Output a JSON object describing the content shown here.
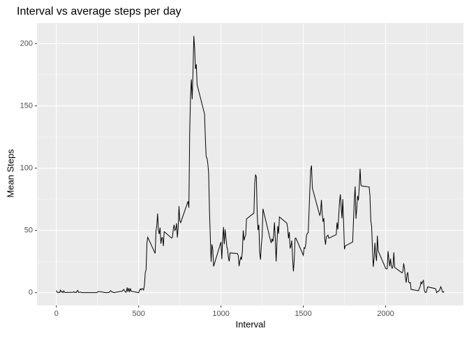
{
  "chart_data": {
    "type": "line",
    "title": "Interval vs average steps per day",
    "x_label": "Interval",
    "y_label": "Mean Steps",
    "color": "#000000",
    "x": [
      0,
      5,
      10,
      15,
      20,
      25,
      30,
      35,
      40,
      45,
      50,
      55,
      100,
      105,
      110,
      115,
      120,
      125,
      130,
      135,
      140,
      145,
      150,
      155,
      200,
      220,
      230,
      245,
      255,
      300,
      310,
      320,
      330,
      340,
      350,
      400,
      410,
      420,
      425,
      430,
      435,
      440,
      445,
      450,
      455,
      500,
      505,
      510,
      515,
      520,
      525,
      530,
      535,
      540,
      545,
      550,
      555,
      600,
      605,
      610,
      615,
      620,
      625,
      630,
      635,
      640,
      645,
      650,
      655,
      700,
      705,
      710,
      715,
      720,
      725,
      730,
      735,
      740,
      745,
      750,
      755,
      800,
      805,
      810,
      815,
      820,
      825,
      830,
      835,
      840,
      845,
      850,
      855,
      900,
      905,
      910,
      915,
      920,
      925,
      930,
      935,
      940,
      945,
      950,
      955,
      1000,
      1005,
      1010,
      1015,
      1020,
      1025,
      1030,
      1035,
      1040,
      1045,
      1050,
      1055,
      1100,
      1105,
      1110,
      1115,
      1120,
      1125,
      1130,
      1135,
      1140,
      1145,
      1150,
      1155,
      1200,
      1205,
      1210,
      1215,
      1220,
      1225,
      1230,
      1235,
      1240,
      1245,
      1250,
      1255,
      1300,
      1305,
      1310,
      1315,
      1320,
      1325,
      1330,
      1335,
      1340,
      1345,
      1350,
      1355,
      1400,
      1405,
      1410,
      1415,
      1420,
      1425,
      1430,
      1435,
      1440,
      1445,
      1450,
      1455,
      1500,
      1505,
      1510,
      1515,
      1520,
      1525,
      1530,
      1535,
      1540,
      1545,
      1550,
      1555,
      1600,
      1605,
      1610,
      1615,
      1620,
      1625,
      1630,
      1635,
      1640,
      1645,
      1650,
      1655,
      1700,
      1705,
      1710,
      1715,
      1720,
      1725,
      1730,
      1735,
      1740,
      1745,
      1750,
      1755,
      1800,
      1805,
      1810,
      1815,
      1820,
      1825,
      1830,
      1835,
      1840,
      1845,
      1850,
      1855,
      1900,
      1905,
      1910,
      1915,
      1920,
      1925,
      1930,
      1935,
      1940,
      1945,
      1950,
      1955,
      2000,
      2005,
      2010,
      2015,
      2020,
      2025,
      2030,
      2035,
      2040,
      2045,
      2050,
      2055,
      2100,
      2105,
      2110,
      2115,
      2120,
      2125,
      2130,
      2135,
      2140,
      2145,
      2150,
      2155,
      2200,
      2205,
      2210,
      2215,
      2220,
      2225,
      2230,
      2235,
      2240,
      2245,
      2250,
      2255,
      2300,
      2305,
      2310,
      2315,
      2320,
      2325,
      2330,
      2335,
      2340,
      2345,
      2350,
      2355
    ],
    "values": [
      1.7,
      0.3,
      0.1,
      0.2,
      0.1,
      2.1,
      0.5,
      0.9,
      0,
      1.5,
      0.3,
      0.1,
      0.3,
      0.7,
      0.2,
      0.3,
      0,
      1.1,
      1.8,
      0.2,
      0.2,
      0.4,
      0.3,
      0,
      0,
      0,
      0,
      0,
      0.9,
      0,
      0,
      0.2,
      1.6,
      0.5,
      0,
      1.2,
      2.6,
      0.3,
      0.4,
      4.1,
      0.7,
      3.5,
      0.8,
      3.1,
      1.1,
      0,
      1.6,
      3.0,
      2.2,
      3.3,
      3.0,
      2.1,
      6.1,
      16,
      18.3,
      39.5,
      44.5,
      31.5,
      49.3,
      53.8,
      63.5,
      50,
      47.1,
      52.2,
      39.3,
      44.0,
      44.2,
      37.4,
      49,
      43.8,
      44.4,
      50.5,
      54.5,
      49.9,
      50.9,
      55.7,
      44.3,
      52.3,
      69.5,
      57.8,
      56.2,
      73.4,
      68.2,
      129.4,
      157.5,
      171.2,
      155.4,
      177.3,
      206.2,
      195.9,
      179.6,
      183.4,
      167.0,
      143.5,
      124.0,
      109.1,
      108.1,
      103.7,
      95.9,
      66.2,
      45.2,
      24.8,
      38.8,
      35.0,
      21.1,
      40.6,
      27.0,
      42.4,
      52.7,
      38.9,
      50.8,
      44.3,
      37.4,
      34.7,
      28.3,
      25.1,
      31.9,
      31.4,
      29.7,
      21.3,
      25.5,
      28.4,
      26.5,
      33.4,
      50.0,
      42.0,
      44.6,
      46.0,
      59.2,
      63.9,
      87.7,
      94.8,
      92.8,
      63.4,
      50.2,
      54.5,
      32.4,
      26.5,
      37.7,
      45.1,
      67.3,
      42.3,
      39.9,
      43.3,
      41.0,
      46.2,
      56.4,
      42.8,
      25.1,
      40.0,
      53.5,
      47.3,
      60.8,
      55.8,
      52.0,
      43.6,
      48.7,
      35.5,
      37.5,
      41.8,
      27.5,
      17.1,
      26.1,
      43.6,
      43.8,
      30.0,
      36.1,
      35.5,
      38.8,
      46.0,
      47.8,
      48.1,
      65.3,
      82.9,
      98.7,
      102.1,
      84.0,
      62.1,
      64.1,
      74.5,
      63.2,
      56.9,
      59.8,
      43.9,
      38.6,
      44.7,
      45.5,
      46.2,
      43.7,
      46.6,
      56.3,
      50.7,
      61.2,
      72.7,
      78.9,
      68.9,
      59.7,
      75.1,
      56.5,
      34.8,
      37.5,
      40.7,
      58.0,
      74.7,
      85.3,
      59.3,
      67.8,
      77.7,
      74.2,
      85.3,
      99.5,
      86.6,
      85.6,
      84.9,
      77.8,
      58.0,
      53.4,
      36.3,
      20.7,
      27.4,
      40.0,
      30.2,
      25.5,
      45.7,
      33.5,
      19.6,
      19.0,
      19.3,
      33.3,
      26.8,
      21.2,
      27.3,
      21.3,
      19.6,
      21.3,
      32.3,
      20.2,
      15.9,
      17.2,
      23.5,
      19.2,
      12.5,
      8.0,
      14.7,
      16.3,
      8.7,
      7.8,
      8.1,
      2.6,
      1.5,
      3.7,
      4.8,
      8.5,
      7.1,
      8.7,
      9.8,
      2.2,
      0.3,
      0.1,
      1.6,
      4.6,
      3.3,
      2.8,
      0,
      0.8,
      1.0,
      1.6,
      2.6,
      4.7,
      3.3,
      0.6,
      0.2,
      1.1
    ],
    "xlim": [
      -117.75,
      2472.75
    ],
    "xticks": [
      0,
      500,
      1000,
      1500,
      2000
    ],
    "xminorticks": [
      250,
      750,
      1250,
      1750,
      2250
    ],
    "ylim": [
      -10.3,
      216.5
    ],
    "yticks": [
      0,
      50,
      100,
      150,
      200
    ],
    "yminorticks": [
      25,
      75,
      125,
      175
    ],
    "grid": true
  }
}
